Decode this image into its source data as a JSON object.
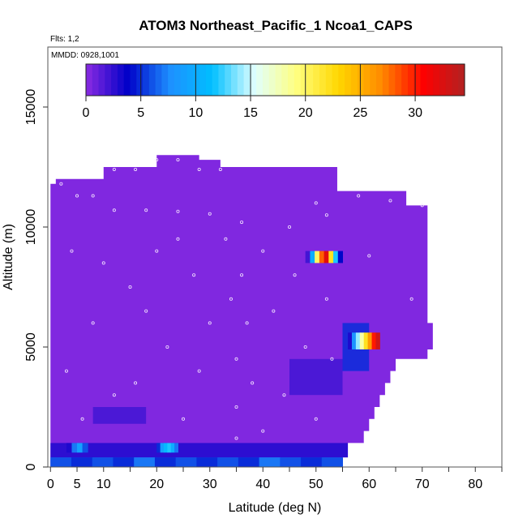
{
  "chart_data": {
    "type": "heatmap",
    "title": "ATOM3 Northeast_Pacific_1 Ncoa1_CAPS",
    "flights_label": "Flts: 1,2",
    "dates_label": "MMDD: 0928,1001",
    "xlabel": "Latitude (deg N)",
    "ylabel": "Altitude (m)",
    "xlim": [
      -0.5,
      85
    ],
    "ylim": [
      0,
      17500
    ],
    "x_ticks": [
      0,
      5,
      10,
      20,
      30,
      40,
      50,
      60,
      70,
      80
    ],
    "x_minor_ticks": [
      15,
      25,
      35,
      45,
      55,
      65,
      75,
      85
    ],
    "y_ticks": [
      0,
      5000,
      10000,
      15000
    ],
    "colorbar": {
      "min": 0,
      "max": 34.5,
      "ticks": [
        0,
        5,
        10,
        15,
        20,
        25,
        30
      ],
      "colors": [
        "#8b2be2",
        "#0000c8",
        "#1e90ff",
        "#00bfff",
        "#e0ffff",
        "#ffff80",
        "#ffd700",
        "#ff8c00",
        "#ff0000",
        "#b22222"
      ]
    },
    "background_value": 0.3,
    "patches": [
      {
        "lat": [
          56,
          62
        ],
        "alt": [
          4900,
          5600
        ],
        "values": [
          3,
          8,
          14,
          18,
          22,
          26,
          30,
          33
        ]
      },
      {
        "lat": [
          48,
          55
        ],
        "alt": [
          8500,
          9000
        ],
        "values": [
          2,
          10,
          20,
          28,
          32,
          22,
          12,
          4
        ]
      },
      {
        "lat": [
          20,
          24
        ],
        "alt": [
          600,
          1000
        ],
        "values": [
          5,
          9,
          11,
          12,
          10,
          7
        ]
      },
      {
        "lat": [
          3,
          7
        ],
        "alt": [
          600,
          1000
        ],
        "values": [
          3,
          7,
          9,
          6
        ]
      },
      {
        "lat": [
          0,
          55
        ],
        "alt": [
          0,
          400
        ],
        "values": [
          6,
          5,
          6,
          5,
          7,
          5,
          6,
          5,
          6,
          5,
          7,
          6,
          5,
          6
        ]
      }
    ],
    "sample_points": [
      [
        2,
        11800
      ],
      [
        5,
        11300
      ],
      [
        8,
        11300
      ],
      [
        12,
        12400
      ],
      [
        16,
        12400
      ],
      [
        20,
        12800
      ],
      [
        24,
        12800
      ],
      [
        28,
        12400
      ],
      [
        32,
        12400
      ],
      [
        12,
        10700
      ],
      [
        18,
        10700
      ],
      [
        24,
        10650
      ],
      [
        30,
        10550
      ],
      [
        36,
        10200
      ],
      [
        50,
        11000
      ],
      [
        58,
        11300
      ],
      [
        64,
        11100
      ],
      [
        70,
        10900
      ],
      [
        33,
        9500
      ],
      [
        34,
        7000
      ],
      [
        35,
        4500
      ],
      [
        35,
        2500
      ],
      [
        35,
        1200
      ],
      [
        36,
        8000
      ],
      [
        37,
        6000
      ],
      [
        38,
        3500
      ],
      [
        4,
        9000
      ],
      [
        8,
        6000
      ],
      [
        12,
        3000
      ],
      [
        15,
        7500
      ],
      [
        20,
        9000
      ],
      [
        22,
        5000
      ],
      [
        25,
        2000
      ],
      [
        27,
        8000
      ],
      [
        28,
        4000
      ],
      [
        40,
        9000
      ],
      [
        42,
        6500
      ],
      [
        44,
        3000
      ],
      [
        46,
        8000
      ],
      [
        48,
        5000
      ],
      [
        50,
        2000
      ],
      [
        52,
        7000
      ],
      [
        53,
        4500
      ],
      [
        3,
        4000
      ],
      [
        6,
        2000
      ],
      [
        10,
        8500
      ],
      [
        16,
        3500
      ],
      [
        18,
        6500
      ],
      [
        24,
        9500
      ],
      [
        30,
        6000
      ],
      [
        40,
        1500
      ],
      [
        45,
        10000
      ],
      [
        52,
        10500
      ],
      [
        68,
        7000
      ],
      [
        60,
        8800
      ]
    ]
  }
}
